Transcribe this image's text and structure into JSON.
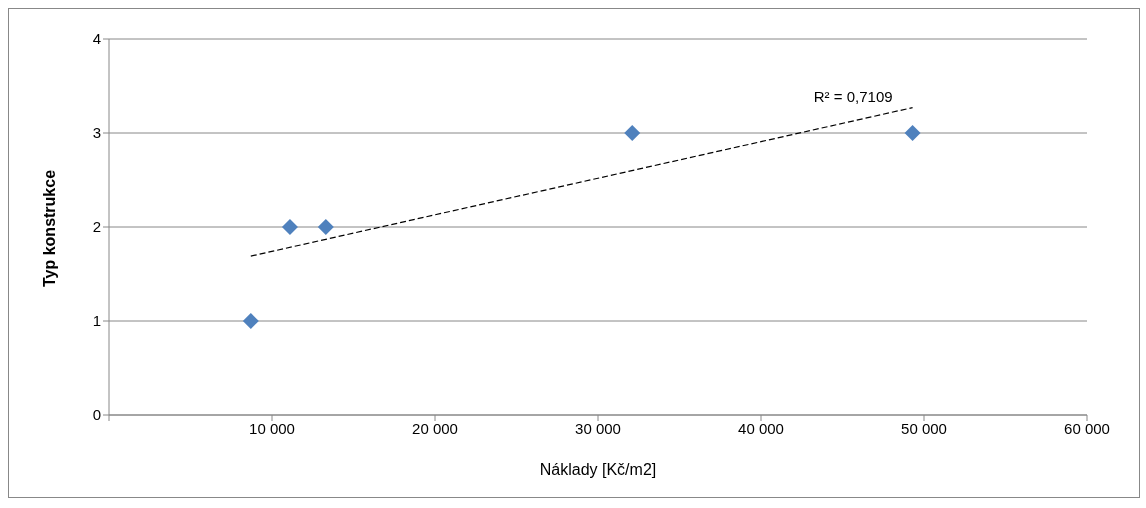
{
  "chart_data": {
    "type": "scatter",
    "xlabel": "Náklady [Kč/m2]",
    "ylabel": "Typ konstrukce",
    "series": [
      {
        "type": "scatter",
        "color": "#4f81bd",
        "marker": "diamond",
        "x": [
          8700,
          11100,
          13300,
          32100,
          49300
        ],
        "values": [
          1,
          2,
          2,
          3,
          3
        ]
      },
      {
        "type": "line",
        "color": "#000000",
        "line_style": "dashed",
        "marker": "none",
        "x": [
          8700,
          49300
        ],
        "values": [
          1.69,
          3.27
        ]
      }
    ],
    "xlim": [
      0,
      60000
    ],
    "xticks": [
      {
        "value": 0,
        "label": null
      },
      {
        "value": 10000,
        "label": "10 000"
      },
      {
        "value": 20000,
        "label": "20 000"
      },
      {
        "value": 30000,
        "label": "30 000"
      },
      {
        "value": 40000,
        "label": "40 000"
      },
      {
        "value": 50000,
        "label": "50 000"
      },
      {
        "value": 60000,
        "label": "60 000"
      }
    ],
    "ylim": [
      0,
      4
    ],
    "yticks": [
      0,
      1,
      2,
      3,
      4
    ],
    "grid": "y",
    "legend": false,
    "annotations": [
      "R² = 0,7109"
    ]
  }
}
